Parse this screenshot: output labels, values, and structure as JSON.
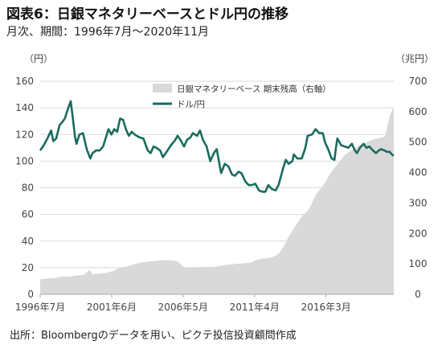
{
  "header": {
    "title": "図表6：日銀マネタリーベースとドル円の推移",
    "subtitle": "月次、期間：1996年7月～2020年11月"
  },
  "footer": {
    "source": "出所：Bloombergのデータを用い、ピクテ投信投資顧問作成"
  },
  "colors": {
    "line": "#1a6b5e",
    "area": "#d9d9d9",
    "grid": "#d9d9d9",
    "axis": "#aaaaaa"
  },
  "chart_data": {
    "type": "line",
    "grid": true,
    "legend_position": "top-center",
    "x_tick_labels": [
      "1996年7月",
      "2001年6月",
      "2006年5月",
      "2011年4月",
      "2016年3月"
    ],
    "x_ticks_decimal": [
      1996.5,
      2001.42,
      2006.33,
      2011.25,
      2016.17
    ],
    "x_range": [
      1996.5,
      2020.83
    ],
    "left_axis": {
      "unit_label": "（円）",
      "ylim": [
        0,
        160
      ],
      "ticks": [
        0,
        20,
        40,
        60,
        80,
        100,
        120,
        140,
        160
      ]
    },
    "right_axis": {
      "unit_label": "（兆円）",
      "ylim": [
        0,
        700
      ],
      "ticks": [
        0,
        100,
        200,
        300,
        400,
        500,
        600,
        700
      ]
    },
    "series": [
      {
        "name": "日銀マネタリーベース 期末残高（右軸）",
        "kind": "area",
        "axis": "right",
        "points": [
          [
            1996.5,
            50
          ],
          [
            1997.0,
            52
          ],
          [
            1997.5,
            54
          ],
          [
            1998.0,
            58
          ],
          [
            1998.5,
            58
          ],
          [
            1999.0,
            62
          ],
          [
            1999.5,
            64
          ],
          [
            1999.92,
            80
          ],
          [
            2000.1,
            66
          ],
          [
            2000.5,
            68
          ],
          [
            2001.0,
            70
          ],
          [
            2001.5,
            76
          ],
          [
            2002.0,
            88
          ],
          [
            2002.5,
            92
          ],
          [
            2003.0,
            100
          ],
          [
            2003.5,
            105
          ],
          [
            2004.0,
            108
          ],
          [
            2004.5,
            110
          ],
          [
            2005.0,
            112
          ],
          [
            2005.5,
            112
          ],
          [
            2006.0,
            108
          ],
          [
            2006.3,
            92
          ],
          [
            2006.6,
            88
          ],
          [
            2007.0,
            89
          ],
          [
            2007.5,
            89
          ],
          [
            2008.0,
            90
          ],
          [
            2008.5,
            90
          ],
          [
            2009.0,
            95
          ],
          [
            2009.5,
            97
          ],
          [
            2010.0,
            100
          ],
          [
            2010.5,
            102
          ],
          [
            2011.0,
            104
          ],
          [
            2011.5,
            115
          ],
          [
            2012.0,
            118
          ],
          [
            2012.5,
            122
          ],
          [
            2012.9,
            132
          ],
          [
            2013.3,
            160
          ],
          [
            2013.6,
            190
          ],
          [
            2014.0,
            220
          ],
          [
            2014.5,
            255
          ],
          [
            2015.0,
            280
          ],
          [
            2015.5,
            330
          ],
          [
            2016.0,
            360
          ],
          [
            2016.5,
            400
          ],
          [
            2017.0,
            430
          ],
          [
            2017.5,
            460
          ],
          [
            2018.0,
            475
          ],
          [
            2018.5,
            490
          ],
          [
            2019.0,
            500
          ],
          [
            2019.5,
            510
          ],
          [
            2020.0,
            515
          ],
          [
            2020.25,
            520
          ],
          [
            2020.42,
            560
          ],
          [
            2020.58,
            590
          ],
          [
            2020.83,
            615
          ]
        ]
      },
      {
        "name": "ドル/円",
        "kind": "line",
        "axis": "left",
        "points": [
          [
            1996.5,
            108
          ],
          [
            1996.75,
            112
          ],
          [
            1997.0,
            117
          ],
          [
            1997.25,
            123
          ],
          [
            1997.4,
            115
          ],
          [
            1997.6,
            117
          ],
          [
            1997.83,
            127
          ],
          [
            1998.0,
            129
          ],
          [
            1998.2,
            132
          ],
          [
            1998.4,
            139
          ],
          [
            1998.6,
            145
          ],
          [
            1998.75,
            132
          ],
          [
            1998.9,
            118
          ],
          [
            1999.0,
            113
          ],
          [
            1999.2,
            120
          ],
          [
            1999.45,
            121
          ],
          [
            1999.7,
            109
          ],
          [
            1999.95,
            102
          ],
          [
            2000.1,
            106
          ],
          [
            2000.35,
            108
          ],
          [
            2000.6,
            108
          ],
          [
            2000.83,
            111
          ],
          [
            2001.0,
            117
          ],
          [
            2001.2,
            124
          ],
          [
            2001.4,
            120
          ],
          [
            2001.6,
            124
          ],
          [
            2001.8,
            122
          ],
          [
            2002.0,
            132
          ],
          [
            2002.2,
            131
          ],
          [
            2002.4,
            124
          ],
          [
            2002.6,
            119
          ],
          [
            2002.8,
            122
          ],
          [
            2003.0,
            120
          ],
          [
            2003.3,
            118
          ],
          [
            2003.6,
            117
          ],
          [
            2003.9,
            108
          ],
          [
            2004.1,
            106
          ],
          [
            2004.3,
            111
          ],
          [
            2004.5,
            110
          ],
          [
            2004.75,
            108
          ],
          [
            2004.95,
            103
          ],
          [
            2005.2,
            107
          ],
          [
            2005.5,
            112
          ],
          [
            2005.8,
            116
          ],
          [
            2005.95,
            119
          ],
          [
            2006.15,
            116
          ],
          [
            2006.4,
            111
          ],
          [
            2006.6,
            116
          ],
          [
            2006.85,
            118
          ],
          [
            2007.0,
            121
          ],
          [
            2007.3,
            119
          ],
          [
            2007.5,
            123
          ],
          [
            2007.7,
            116
          ],
          [
            2007.95,
            111
          ],
          [
            2008.2,
            100
          ],
          [
            2008.45,
            106
          ],
          [
            2008.65,
            109
          ],
          [
            2008.85,
            97
          ],
          [
            2008.95,
            91
          ],
          [
            2009.2,
            98
          ],
          [
            2009.45,
            96
          ],
          [
            2009.7,
            90
          ],
          [
            2009.9,
            89
          ],
          [
            2010.15,
            92
          ],
          [
            2010.35,
            91
          ],
          [
            2010.6,
            85
          ],
          [
            2010.85,
            82
          ],
          [
            2011.05,
            82
          ],
          [
            2011.3,
            83
          ],
          [
            2011.55,
            78
          ],
          [
            2011.8,
            77
          ],
          [
            2012.0,
            77
          ],
          [
            2012.2,
            82
          ],
          [
            2012.45,
            79
          ],
          [
            2012.7,
            78
          ],
          [
            2012.9,
            82
          ],
          [
            2013.0,
            86
          ],
          [
            2013.2,
            94
          ],
          [
            2013.4,
            101
          ],
          [
            2013.6,
            98
          ],
          [
            2013.85,
            100
          ],
          [
            2013.95,
            105
          ],
          [
            2014.2,
            102
          ],
          [
            2014.5,
            102
          ],
          [
            2014.75,
            110
          ],
          [
            2014.9,
            119
          ],
          [
            2015.2,
            120
          ],
          [
            2015.45,
            124
          ],
          [
            2015.7,
            121
          ],
          [
            2015.95,
            121
          ],
          [
            2016.1,
            114
          ],
          [
            2016.35,
            108
          ],
          [
            2016.55,
            102
          ],
          [
            2016.75,
            101
          ],
          [
            2016.85,
            110
          ],
          [
            2016.95,
            117
          ],
          [
            2017.2,
            112
          ],
          [
            2017.45,
            111
          ],
          [
            2017.7,
            110
          ],
          [
            2017.95,
            113
          ],
          [
            2018.15,
            108
          ],
          [
            2018.3,
            106
          ],
          [
            2018.5,
            110
          ],
          [
            2018.75,
            113
          ],
          [
            2018.95,
            110
          ],
          [
            2019.15,
            111
          ],
          [
            2019.4,
            108
          ],
          [
            2019.6,
            106
          ],
          [
            2019.8,
            108
          ],
          [
            2019.95,
            109
          ],
          [
            2020.2,
            108
          ],
          [
            2020.35,
            107
          ],
          [
            2020.55,
            107
          ],
          [
            2020.7,
            105
          ],
          [
            2020.83,
            104
          ]
        ]
      }
    ]
  }
}
